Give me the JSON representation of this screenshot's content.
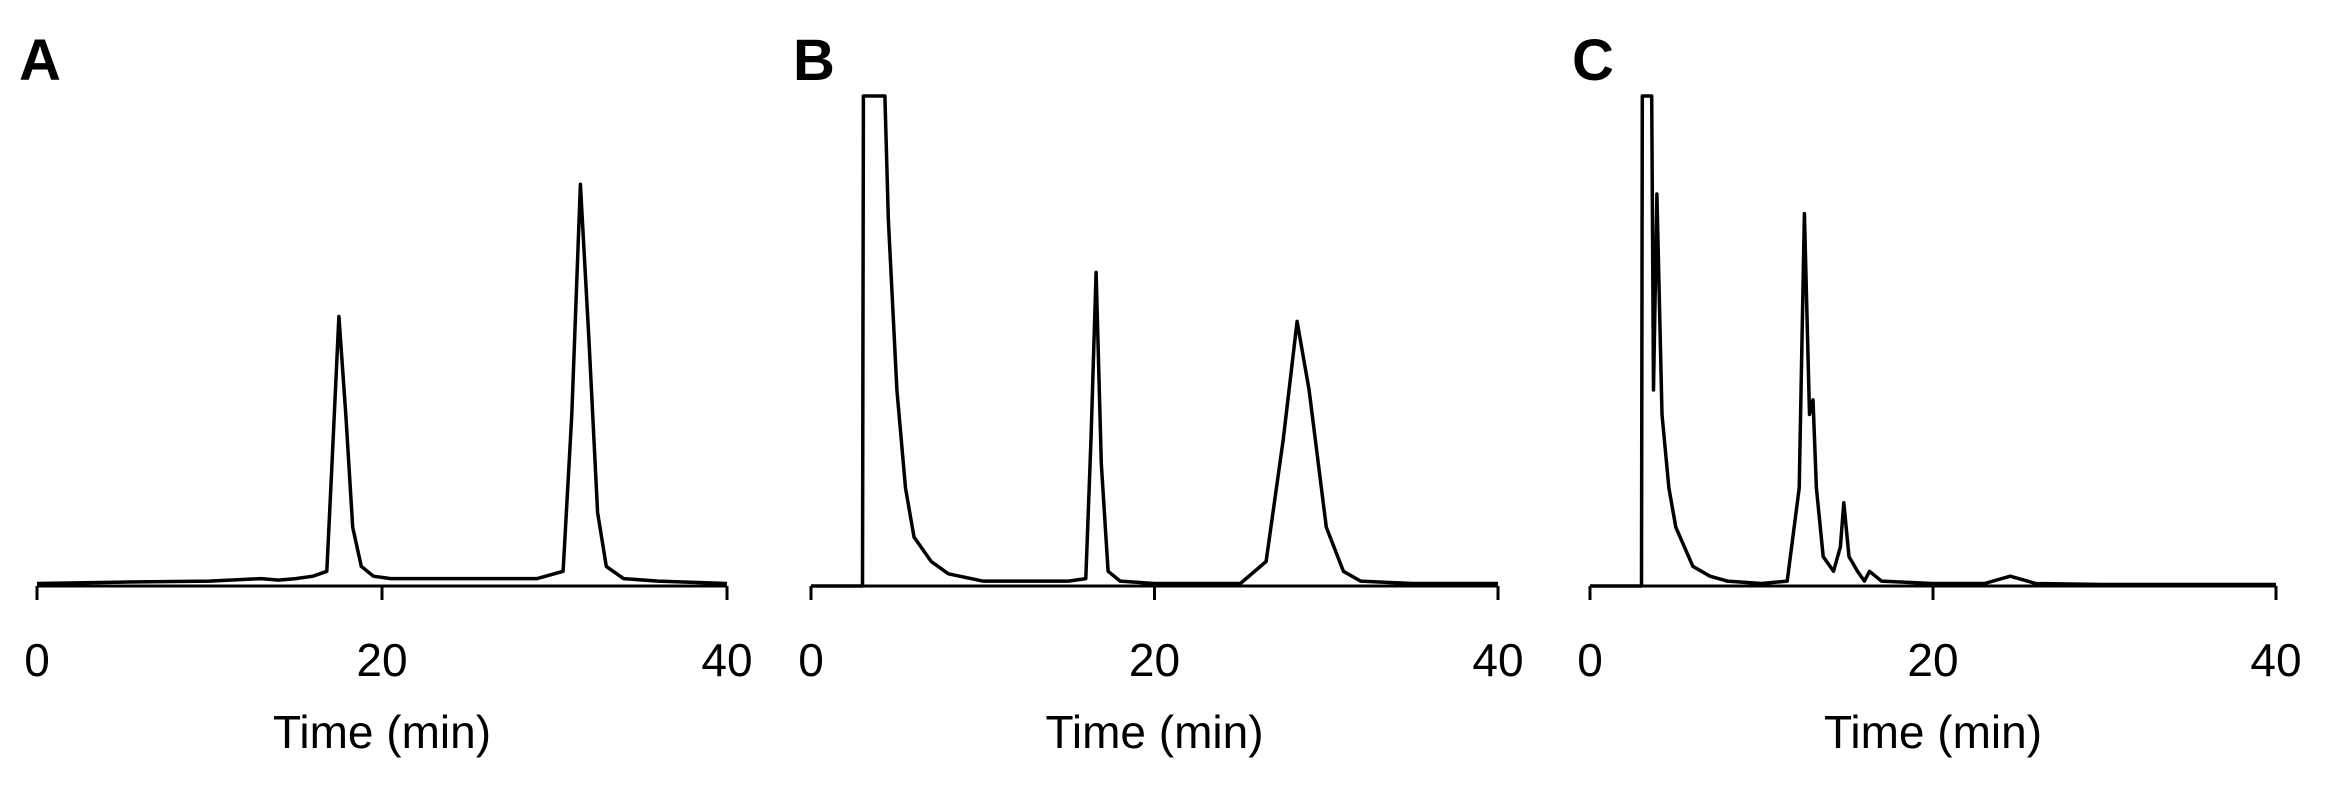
{
  "chart_data": [
    {
      "type": "line",
      "title": "A",
      "x_label": "Time (min)",
      "xlim": [
        0,
        40
      ],
      "xticks": [
        0,
        20,
        40
      ],
      "ylim": [
        0,
        100
      ],
      "color": "#000000",
      "x": [
        0,
        5,
        10,
        13,
        14,
        15,
        16,
        16.8,
        17.1,
        17.5,
        17.9,
        18.3,
        18.8,
        19.5,
        20.5,
        25,
        29,
        30.5,
        31,
        31.5,
        32,
        32.5,
        33,
        34,
        36,
        40
      ],
      "values": [
        0.5,
        0.8,
        1,
        1.5,
        1.2,
        1.5,
        2,
        3,
        25,
        55,
        35,
        12,
        4,
        2,
        1.5,
        1.5,
        1.5,
        3,
        35,
        82,
        50,
        15,
        4,
        1.5,
        1,
        0.5
      ]
    },
    {
      "type": "line",
      "title": "B",
      "x_label": "Time (min)",
      "xlim": [
        0,
        40
      ],
      "xticks": [
        0,
        20,
        40
      ],
      "ylim": [
        0,
        100
      ],
      "color": "#000000",
      "x": [
        0,
        3,
        3.05,
        4.3,
        4.5,
        5,
        5.5,
        6,
        7,
        8,
        10,
        13,
        14,
        15,
        16,
        16.3,
        16.6,
        16.9,
        17.3,
        18,
        20,
        25,
        26.5,
        27.5,
        28.3,
        29,
        30,
        31,
        32,
        35,
        40
      ],
      "values": [
        0,
        0,
        100,
        100,
        75,
        40,
        20,
        10,
        5,
        2.5,
        1,
        1,
        1,
        1,
        1.5,
        30,
        64,
        25,
        3,
        1,
        0.5,
        0.5,
        5,
        30,
        54,
        40,
        12,
        3,
        1,
        0.5,
        0.5
      ]
    },
    {
      "type": "line",
      "title": "C",
      "x_label": "Time (min)",
      "xlim": [
        0,
        40
      ],
      "xticks": [
        0,
        20,
        40
      ],
      "ylim": [
        0,
        100
      ],
      "color": "#000000",
      "x": [
        0,
        3,
        3.05,
        3.6,
        3.7,
        3.9,
        4.2,
        4.6,
        5,
        6,
        7,
        8,
        10,
        11.5,
        12.2,
        12.5,
        12.8,
        13.0,
        13.2,
        13.6,
        14.2,
        14.6,
        14.8,
        15.1,
        15.6,
        16,
        16.3,
        17,
        20,
        23,
        24.5,
        26,
        30,
        40
      ],
      "values": [
        0,
        0,
        100,
        100,
        40,
        80,
        35,
        20,
        12,
        4,
        2,
        1,
        0.5,
        1,
        20,
        76,
        35,
        38,
        20,
        6,
        3,
        8,
        17,
        6,
        3,
        1,
        3,
        1,
        0.5,
        0.5,
        2,
        0.5,
        0.3,
        0.3
      ]
    }
  ]
}
